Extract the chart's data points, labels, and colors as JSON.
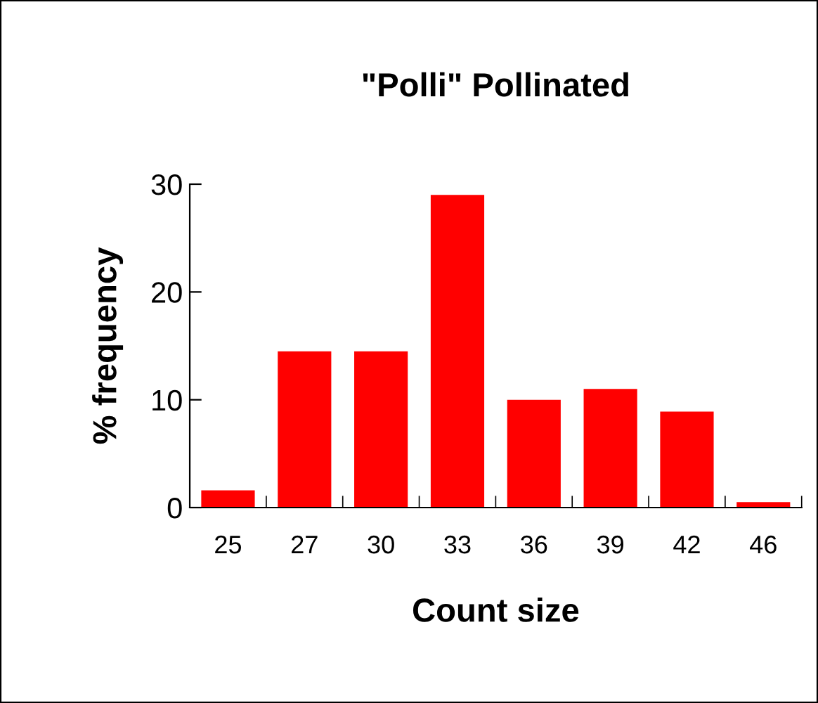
{
  "chart_data": {
    "type": "bar",
    "title": "\"Polli\" Pollinated",
    "xlabel": "Count size",
    "ylabel": "% frequency",
    "categories": [
      "25",
      "27",
      "30",
      "33",
      "36",
      "39",
      "42",
      "46"
    ],
    "values": [
      1.6,
      14.5,
      14.5,
      29,
      10,
      11,
      8.9,
      0.5
    ],
    "color": "#ff0000",
    "ylim": [
      0,
      30
    ],
    "yticks": [
      0,
      10,
      20,
      30
    ],
    "grid": false,
    "legend": false
  }
}
